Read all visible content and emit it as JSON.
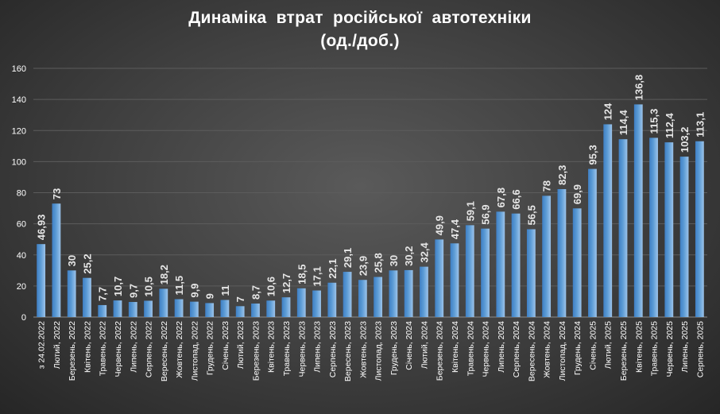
{
  "chart_data": {
    "type": "bar",
    "title": "Динаміка  втрат  російської  автотехніки",
    "subtitle": "(од./доб.)",
    "xlabel": "",
    "ylabel": "",
    "ylim": [
      0,
      160
    ],
    "yticks": [
      "0",
      "20",
      "40",
      "60",
      "80",
      "100",
      "120",
      "140",
      "160"
    ],
    "grid": "horizontal",
    "legend": "none",
    "bar_color": "#5b9bd5",
    "categories": [
      "з 24.02.2022",
      "Лютий, 2022",
      "Березень, 2022",
      "Квітень, 2022",
      "Травень, 2022",
      "Червень, 2022",
      "Липень, 2022",
      "Серпень, 2022",
      "Вересень, 2022",
      "Жовтень, 2022",
      "Листопад, 2022",
      "Грудень, 2022",
      "Січень, 2023",
      "Лютий, 2023",
      "Березень, 2023",
      "Квітень, 2023",
      "Травень, 2023",
      "Червень, 2023",
      "Липень, 2023",
      "Серпень, 2023",
      "Вересень, 2023",
      "Жовтень, 2023",
      "Листопад, 2023",
      "Грудень, 2023",
      "Січень, 2024",
      "Лютий, 2024",
      "Березень, 2024",
      "Квітень, 2024",
      "Травень, 2024",
      "Червень, 2024",
      "Липень, 2024",
      "Серпень, 2024",
      "Вересень, 2024",
      "Жовтень, 2024",
      "Листопад, 2024",
      "Грудень, 2024",
      "Січень, 2025",
      "Лютий, 2025",
      "Березень, 2025",
      "Квітень, 2025",
      "Травень, 2025",
      "Червень, 2025",
      "Липень, 2025",
      "Серпень, 2025"
    ],
    "values": [
      46.93,
      73,
      30,
      25.2,
      7.7,
      10.7,
      9.7,
      10.5,
      18.2,
      11.5,
      9.9,
      9,
      11,
      7,
      8.7,
      10.6,
      12.7,
      18.5,
      17.1,
      22.1,
      29.1,
      23.9,
      25.8,
      30,
      30.2,
      32.4,
      49.9,
      47.4,
      59.1,
      56.9,
      67.8,
      66.6,
      56.5,
      78,
      82.3,
      69.9,
      95.3,
      124,
      114.4,
      136.8,
      115.3,
      112.4,
      103.2,
      113.1
    ],
    "labels": [
      "46,93",
      "73",
      "30",
      "25,2",
      "7,7",
      "10,7",
      "9,7",
      "10,5",
      "18,2",
      "11,5",
      "9,9",
      "9",
      "11",
      "7",
      "8,7",
      "10,6",
      "12,7",
      "18,5",
      "17,1",
      "22,1",
      "29,1",
      "23,9",
      "25,8",
      "30",
      "30,2",
      "32,4",
      "49,9",
      "47,4",
      "59,1",
      "56,9",
      "67,8",
      "66,6",
      "56,5",
      "78",
      "82,3",
      "69,9",
      "95,3",
      "124",
      "114,4",
      "136,8",
      "115,3",
      "112,4",
      "103,2",
      "113,1"
    ]
  }
}
